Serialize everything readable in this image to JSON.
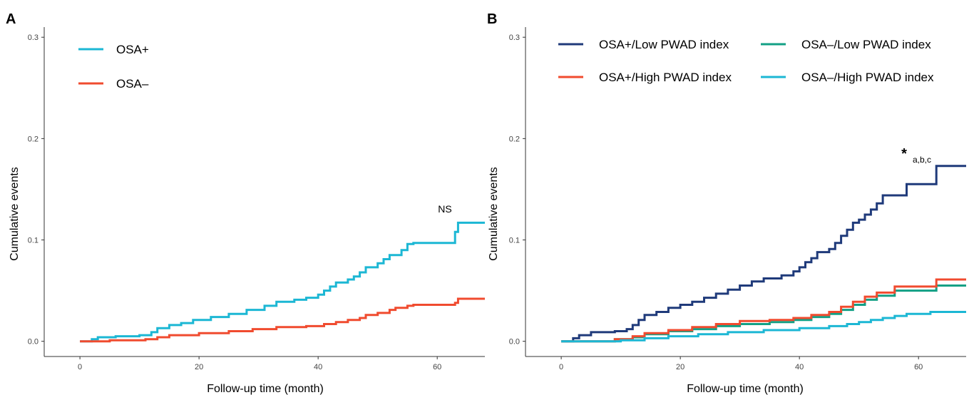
{
  "chart_data": [
    {
      "panel_label": "A",
      "type": "line",
      "step": true,
      "xlabel": "Follow-up time (month)",
      "ylabel": "Cumulative events",
      "xlim": [
        -6,
        68
      ],
      "ylim": [
        -0.015,
        0.31
      ],
      "xticks": [
        0,
        20,
        40,
        60
      ],
      "yticks": [
        0.0,
        0.1,
        0.2,
        0.3
      ],
      "xtick_labels": [
        "0",
        "20",
        "40",
        "60"
      ],
      "ytick_labels": [
        "0.0",
        "0.1",
        "0.2",
        "0.3"
      ],
      "grid": false,
      "legend_position": "top-left",
      "annotation": {
        "text": "NS",
        "x": 63.5,
        "y": 0.132
      },
      "series": [
        {
          "name": "OSA+",
          "color": "#1cb7d4",
          "points": [
            [
              0,
              0.0
            ],
            [
              2,
              0.002
            ],
            [
              3,
              0.004
            ],
            [
              6,
              0.005
            ],
            [
              10,
              0.006
            ],
            [
              12,
              0.009
            ],
            [
              13,
              0.013
            ],
            [
              15,
              0.016
            ],
            [
              17,
              0.018
            ],
            [
              19,
              0.021
            ],
            [
              22,
              0.024
            ],
            [
              25,
              0.027
            ],
            [
              28,
              0.031
            ],
            [
              31,
              0.035
            ],
            [
              33,
              0.039
            ],
            [
              36,
              0.041
            ],
            [
              38,
              0.043
            ],
            [
              40,
              0.046
            ],
            [
              41,
              0.05
            ],
            [
              42,
              0.054
            ],
            [
              43,
              0.058
            ],
            [
              45,
              0.061
            ],
            [
              46,
              0.064
            ],
            [
              47,
              0.068
            ],
            [
              48,
              0.073
            ],
            [
              50,
              0.077
            ],
            [
              51,
              0.081
            ],
            [
              52,
              0.085
            ],
            [
              54,
              0.09
            ],
            [
              55,
              0.096
            ],
            [
              56,
              0.097
            ],
            [
              63,
              0.108
            ],
            [
              63.5,
              0.117
            ],
            [
              68,
              0.117
            ]
          ]
        },
        {
          "name": "OSA–",
          "color": "#f04b2f",
          "points": [
            [
              0,
              0.0
            ],
            [
              5,
              0.001
            ],
            [
              11,
              0.002
            ],
            [
              13,
              0.004
            ],
            [
              15,
              0.006
            ],
            [
              20,
              0.008
            ],
            [
              25,
              0.01
            ],
            [
              29,
              0.012
            ],
            [
              33,
              0.014
            ],
            [
              38,
              0.015
            ],
            [
              41,
              0.017
            ],
            [
              43,
              0.019
            ],
            [
              45,
              0.021
            ],
            [
              47,
              0.023
            ],
            [
              48,
              0.026
            ],
            [
              50,
              0.028
            ],
            [
              52,
              0.031
            ],
            [
              53,
              0.033
            ],
            [
              55,
              0.035
            ],
            [
              56,
              0.036
            ],
            [
              63,
              0.038
            ],
            [
              63.5,
              0.042
            ],
            [
              68,
              0.042
            ]
          ]
        }
      ]
    },
    {
      "panel_label": "B",
      "type": "line",
      "step": true,
      "xlabel": "Follow-up time (month)",
      "ylabel": "Cumulative events",
      "xlim": [
        -6,
        68
      ],
      "ylim": [
        -0.015,
        0.31
      ],
      "xticks": [
        0,
        20,
        40,
        60
      ],
      "yticks": [
        0.0,
        0.1,
        0.2,
        0.3
      ],
      "xtick_labels": [
        "0",
        "20",
        "40",
        "60"
      ],
      "ytick_labels": [
        "0.0",
        "0.1",
        "0.2",
        "0.3"
      ],
      "grid": false,
      "legend_position": "top",
      "annotation": {
        "symbol": "*",
        "superscript": "a,b,c",
        "x": 61,
        "y": 0.183
      },
      "series": [
        {
          "name": "OSA+/Low PWAD index",
          "color": "#1f3a7a",
          "points": [
            [
              0,
              0.0
            ],
            [
              2,
              0.003
            ],
            [
              3,
              0.006
            ],
            [
              5,
              0.009
            ],
            [
              9,
              0.01
            ],
            [
              11,
              0.012
            ],
            [
              12,
              0.016
            ],
            [
              13,
              0.021
            ],
            [
              14,
              0.026
            ],
            [
              16,
              0.029
            ],
            [
              18,
              0.033
            ],
            [
              20,
              0.036
            ],
            [
              22,
              0.039
            ],
            [
              24,
              0.043
            ],
            [
              26,
              0.047
            ],
            [
              28,
              0.051
            ],
            [
              30,
              0.055
            ],
            [
              32,
              0.059
            ],
            [
              34,
              0.062
            ],
            [
              37,
              0.065
            ],
            [
              39,
              0.069
            ],
            [
              40,
              0.073
            ],
            [
              41,
              0.078
            ],
            [
              42,
              0.082
            ],
            [
              43,
              0.088
            ],
            [
              45,
              0.091
            ],
            [
              46,
              0.097
            ],
            [
              47,
              0.104
            ],
            [
              48,
              0.11
            ],
            [
              49,
              0.117
            ],
            [
              50,
              0.12
            ],
            [
              51,
              0.125
            ],
            [
              52,
              0.13
            ],
            [
              53,
              0.136
            ],
            [
              54,
              0.144
            ],
            [
              58,
              0.155
            ],
            [
              63,
              0.173
            ],
            [
              68,
              0.173
            ]
          ]
        },
        {
          "name": "OSA–/Low PWAD index",
          "color": "#13a085",
          "points": [
            [
              0,
              0.0
            ],
            [
              9,
              0.002
            ],
            [
              12,
              0.004
            ],
            [
              14,
              0.007
            ],
            [
              18,
              0.01
            ],
            [
              22,
              0.012
            ],
            [
              26,
              0.015
            ],
            [
              30,
              0.017
            ],
            [
              35,
              0.019
            ],
            [
              39,
              0.021
            ],
            [
              42,
              0.024
            ],
            [
              45,
              0.027
            ],
            [
              47,
              0.031
            ],
            [
              49,
              0.036
            ],
            [
              51,
              0.041
            ],
            [
              53,
              0.045
            ],
            [
              56,
              0.05
            ],
            [
              63,
              0.055
            ],
            [
              68,
              0.055
            ]
          ]
        },
        {
          "name": "OSA+/High PWAD index",
          "color": "#f04b2f",
          "points": [
            [
              0,
              0.0
            ],
            [
              9,
              0.002
            ],
            [
              12,
              0.005
            ],
            [
              14,
              0.008
            ],
            [
              18,
              0.011
            ],
            [
              22,
              0.014
            ],
            [
              26,
              0.017
            ],
            [
              30,
              0.02
            ],
            [
              35,
              0.021
            ],
            [
              39,
              0.023
            ],
            [
              42,
              0.026
            ],
            [
              45,
              0.029
            ],
            [
              47,
              0.034
            ],
            [
              49,
              0.039
            ],
            [
              51,
              0.044
            ],
            [
              53,
              0.048
            ],
            [
              56,
              0.054
            ],
            [
              63,
              0.061
            ],
            [
              68,
              0.061
            ]
          ]
        },
        {
          "name": "OSA–/High PWAD index",
          "color": "#1cb7d4",
          "points": [
            [
              0,
              0.0
            ],
            [
              10,
              0.001
            ],
            [
              14,
              0.003
            ],
            [
              18,
              0.005
            ],
            [
              23,
              0.007
            ],
            [
              28,
              0.009
            ],
            [
              34,
              0.011
            ],
            [
              40,
              0.013
            ],
            [
              45,
              0.015
            ],
            [
              48,
              0.017
            ],
            [
              50,
              0.019
            ],
            [
              52,
              0.021
            ],
            [
              54,
              0.023
            ],
            [
              56,
              0.025
            ],
            [
              58,
              0.027
            ],
            [
              62,
              0.029
            ],
            [
              68,
              0.029
            ]
          ]
        }
      ]
    }
  ]
}
